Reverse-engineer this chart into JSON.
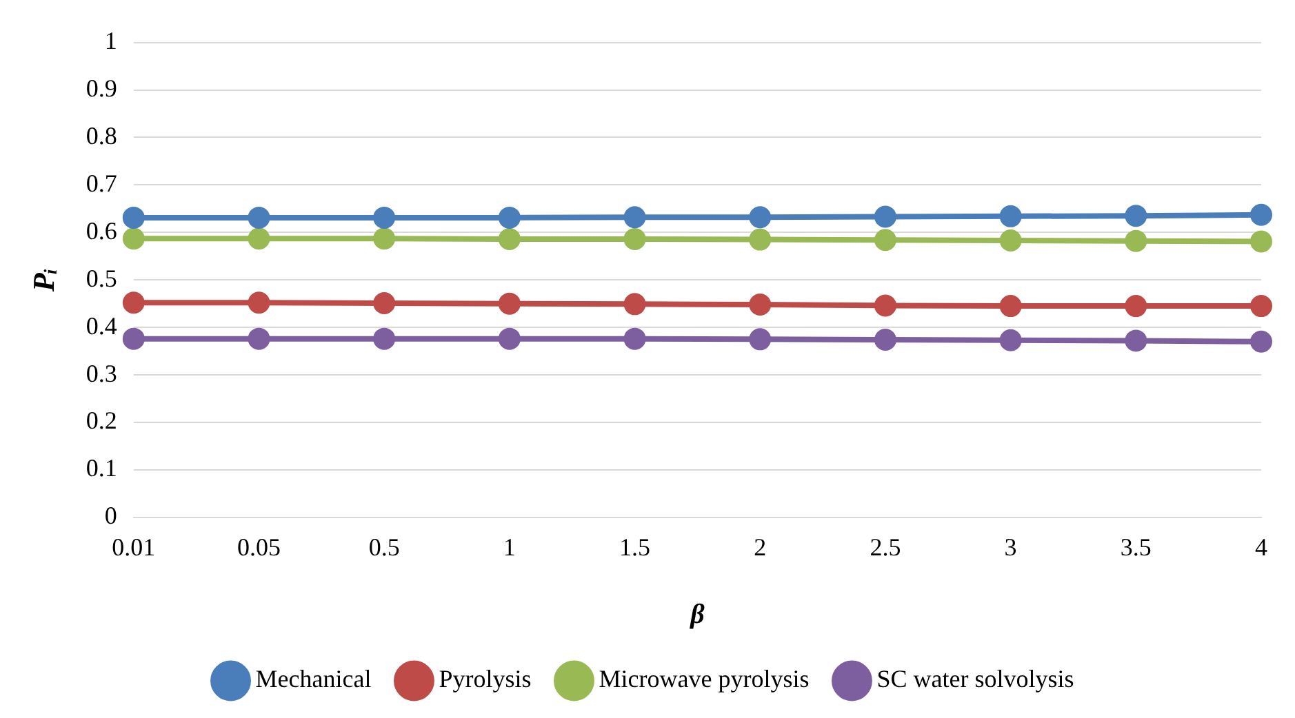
{
  "chart_data": {
    "type": "line",
    "xlabel": "β",
    "ylabel": "Pᵢ",
    "categories": [
      "0.01",
      "0.05",
      "0.5",
      "1",
      "1.5",
      "2",
      "2.5",
      "3",
      "3.5",
      "4"
    ],
    "series": [
      {
        "name": "Mechanical",
        "color": "#4a7ebb",
        "values": [
          0.631,
          0.631,
          0.631,
          0.631,
          0.632,
          0.632,
          0.633,
          0.634,
          0.635,
          0.637
        ]
      },
      {
        "name": "Pyrolysis",
        "color": "#be4b48",
        "values": [
          0.452,
          0.452,
          0.451,
          0.45,
          0.449,
          0.448,
          0.446,
          0.445,
          0.445,
          0.445
        ]
      },
      {
        "name": "Microwave pyrolysis",
        "color": "#98b954",
        "values": [
          0.587,
          0.587,
          0.587,
          0.586,
          0.586,
          0.585,
          0.584,
          0.583,
          0.582,
          0.581
        ]
      },
      {
        "name": "SC water solvolysis",
        "color": "#7d5fa0",
        "values": [
          0.376,
          0.376,
          0.376,
          0.376,
          0.376,
          0.375,
          0.374,
          0.373,
          0.372,
          0.37
        ]
      }
    ],
    "ylim": [
      0,
      1
    ],
    "yticks": [
      0,
      0.1,
      0.2,
      0.3,
      0.4,
      0.5,
      0.6,
      0.7,
      0.8,
      0.9,
      1
    ],
    "grid": "y",
    "legend": "bottom",
    "marker": "circle",
    "line_style": "solid"
  }
}
